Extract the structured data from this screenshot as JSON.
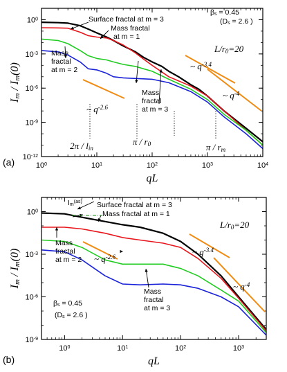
{
  "chart_data": [
    {
      "panel_label": "(a)",
      "type": "line",
      "xlabel": "qL",
      "ylabel": "I_m / I_m(0)",
      "xscale": "log",
      "yscale": "log",
      "xlim": [
        1,
        10000
      ],
      "ylim": [
        1e-12,
        10
      ],
      "x_tick_labels": [
        "10^0",
        "10^1",
        "10^2",
        "10^3",
        "10^4"
      ],
      "y_tick_labels": [
        "10^0",
        "10^-3",
        "10^-6",
        "10^-9",
        "10^-12"
      ],
      "colors": {
        "m3": "#000000",
        "m1": "#e8151b",
        "m2": "#22cc22",
        "m3mass": "#1a22d8",
        "slope": "#f08c14"
      },
      "series": [
        {
          "label": "Surface fractal at m = 3",
          "color": "#000000",
          "x": [
            1,
            2,
            3,
            5,
            7,
            10,
            15,
            20,
            30,
            50,
            70,
            100,
            150,
            200,
            300,
            500,
            700,
            1000,
            2000,
            5000,
            10000
          ],
          "y": [
            0.6,
            0.55,
            0.5,
            0.3,
            0.15,
            0.07,
            0.03,
            0.015,
            0.005,
            0.0015,
            0.0005,
            0.0002,
            8e-05,
            3e-05,
            1e-05,
            2e-06,
            8e-07,
            2e-07,
            1e-08,
            3e-10,
            2e-11
          ]
        },
        {
          "label": "Mass fractal at m = 1",
          "color": "#e8151b",
          "x": [
            1,
            2,
            3,
            5,
            7,
            10,
            15,
            20,
            30,
            50,
            70,
            100,
            200,
            500,
            1000,
            2000,
            5000,
            10000
          ],
          "y": [
            0.2,
            0.19,
            0.18,
            0.08,
            0.04,
            0.03,
            0.025,
            0.015,
            0.006,
            0.0012,
            0.00035,
            0.0001,
            1e-05,
            1.5e-06,
            2e-07,
            1e-08,
            2e-10,
            1e-11
          ]
        },
        {
          "label": "Mass fractal at m = 2",
          "color": "#22cc22",
          "x": [
            1,
            2,
            3,
            5,
            7,
            10,
            15,
            20,
            30,
            50,
            70,
            100,
            200,
            500,
            1000,
            2000,
            5000,
            10000
          ],
          "y": [
            0.02,
            0.015,
            0.008,
            0.002,
            0.0007,
            0.0004,
            0.0003,
            0.0002,
            0.00012,
            8e-05,
            5e-05,
            3e-05,
            6e-06,
            8e-07,
            1e-07,
            5e-09,
            2e-10,
            1e-11
          ]
        },
        {
          "label": "Mass fractal at m = 3",
          "color": "#1a22d8",
          "x": [
            1,
            2,
            3,
            5,
            7,
            10,
            15,
            20,
            30,
            50,
            70,
            100,
            200,
            500,
            1000,
            2000,
            5000,
            10000
          ],
          "y": [
            0.002,
            0.0015,
            0.0008,
            0.0002,
            5e-05,
            4e-05,
            2e-05,
            1e-05,
            8e-06,
            7e-06,
            6.5e-06,
            6e-06,
            3e-06,
            5e-07,
            6e-08,
            3e-09,
            1e-10,
            5e-12
          ]
        }
      ],
      "annotations": [
        {
          "text": "Surface fractal at m = 3"
        },
        {
          "text": "Mass fractal"
        },
        {
          "text": "at m = 1"
        },
        {
          "text": "Mass"
        },
        {
          "text": "fractal"
        },
        {
          "text": "at m = 2"
        },
        {
          "text": "Mass"
        },
        {
          "text": "fractal"
        },
        {
          "text": "at m = 3"
        },
        {
          "text": "β_s = 0.45"
        },
        {
          "text": "(D_s = 2.6 )"
        },
        {
          "text": "L/r_0=20"
        },
        {
          "text": "~ q^-3.4"
        },
        {
          "text": "~ q^-4"
        },
        {
          "text": "~ q^-2.6"
        },
        {
          "text": "2π / l_in"
        },
        {
          "text": "π / r_0"
        },
        {
          "text": "π / r_m"
        }
      ]
    },
    {
      "panel_label": "(b)",
      "type": "line",
      "xlabel": "qL",
      "ylabel": "I_m / I_m(0)",
      "xscale": "log",
      "yscale": "log",
      "xlim": [
        0.4,
        3000
      ],
      "ylim": [
        1e-09,
        10
      ],
      "x_tick_labels": [
        "10^0",
        "10^1",
        "10^2",
        "10^3"
      ],
      "y_tick_labels": [
        "10^0",
        "10^-3",
        "10^-6",
        "10^-9"
      ],
      "series": [
        {
          "label": "Surface fractal at m = 3",
          "color": "#000000",
          "x": [
            0.4,
            1,
            2,
            5,
            10,
            20,
            50,
            100,
            200,
            500,
            1000,
            3000
          ],
          "y": [
            0.8,
            0.7,
            0.4,
            0.2,
            0.12,
            0.08,
            0.03,
            0.008,
            0.001,
            3e-05,
            1e-06,
            5e-09
          ]
        },
        {
          "label": "Mass fractal at m = 1",
          "color": "#e8151b",
          "x": [
            0.4,
            1,
            2,
            5,
            10,
            20,
            50,
            100,
            200,
            500,
            1000,
            3000
          ],
          "y": [
            0.08,
            0.08,
            0.06,
            0.03,
            0.015,
            0.01,
            0.006,
            0.003,
            0.0005,
            2e-05,
            8e-07,
            4e-09
          ]
        },
        {
          "label": "Mass fractal at m = 2",
          "color": "#22cc22",
          "x": [
            0.4,
            1,
            2,
            5,
            10,
            20,
            50,
            100,
            200,
            500,
            1000,
            3000
          ],
          "y": [
            0.01,
            0.008,
            0.003,
            0.0004,
            0.0002,
            0.0002,
            0.0002,
            0.0001,
            3e-05,
            3e-06,
            5e-07,
            3e-09
          ]
        },
        {
          "label": "Mass fractal at m = 3",
          "color": "#1a22d8",
          "x": [
            0.4,
            1,
            2,
            5,
            10,
            20,
            50,
            100,
            200,
            500,
            1000,
            3000
          ],
          "y": [
            0.002,
            0.0015,
            0.0004,
            3e-05,
            8e-06,
            7e-06,
            8e-06,
            7e-06,
            4e-06,
            1e-06,
            2e-07,
            2e-09
          ]
        }
      ],
      "annotations": [
        {
          "text": "I_m^(as)"
        },
        {
          "text": "Surface fractal at m = 3"
        },
        {
          "text": "Mass fractal at m = 1"
        },
        {
          "text": "L/r_0=20"
        },
        {
          "text": "Mass"
        },
        {
          "text": "fractal"
        },
        {
          "text": "at m = 2"
        },
        {
          "text": "~ q^-3.4"
        },
        {
          "text": "~ q^-2.6"
        },
        {
          "text": "~ q^-4"
        },
        {
          "text": "Mass"
        },
        {
          "text": "fractal"
        },
        {
          "text": "at m = 3"
        },
        {
          "text": "β_s = 0.45"
        },
        {
          "text": "(D_s = 2.6 )"
        }
      ]
    }
  ]
}
